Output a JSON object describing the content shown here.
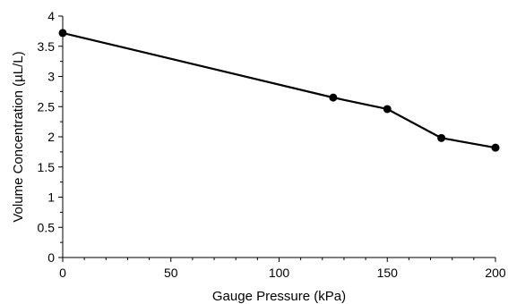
{
  "chart_data": {
    "type": "line",
    "title": "",
    "xlabel": "Gauge Pressure (kPa)",
    "ylabel": "Volume Concentration (µL/L)",
    "xlim": [
      0,
      200
    ],
    "ylim": [
      0,
      4
    ],
    "xticks": [
      0,
      50,
      100,
      150,
      200
    ],
    "yticks": [
      0,
      0.5,
      1,
      1.5,
      2,
      2.5,
      3,
      3.5,
      4
    ],
    "xtick_labels": [
      "0",
      "50",
      "100",
      "150",
      "200"
    ],
    "ytick_labels": [
      "0",
      "0.5",
      "1",
      "1.5",
      "2",
      "2.5",
      "3",
      "3.5",
      "4"
    ],
    "grid": false,
    "legend": "none",
    "series": [
      {
        "x": [
          0,
          125,
          150,
          175,
          200
        ],
        "y": [
          3.72,
          2.65,
          2.46,
          1.98,
          1.82
        ],
        "color": "#000000",
        "marker": "circle"
      }
    ]
  }
}
